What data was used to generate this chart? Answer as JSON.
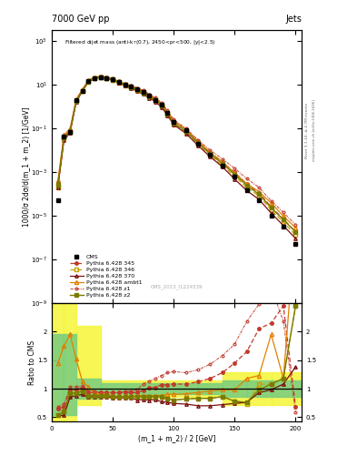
{
  "title_top": "7000 GeV pp",
  "title_right": "Jets",
  "xlabel": "(m_1 + m_2) / 2 [GeV]",
  "ylabel_main": "1000/σ 2dσ/d(m_1 + m_2) [1/GeV]",
  "ylabel_ratio": "Ratio to CMS",
  "watermark": "CMS_2013_I1224539",
  "right_label": "mcplots.cern.ch [arXiv:1306.3436]",
  "right_label2": "Rivet 3.1.10, ≥ 2.7M events",
  "cms_x": [
    5,
    10,
    15,
    20,
    25,
    30,
    35,
    40,
    45,
    50,
    55,
    60,
    65,
    70,
    75,
    80,
    85,
    90,
    95,
    100,
    110,
    120,
    130,
    140,
    150,
    160,
    170,
    180,
    190,
    200
  ],
  "cms_y": [
    5e-05,
    0.04,
    0.07,
    2.0,
    5.0,
    15.0,
    20.0,
    22.0,
    20.0,
    17.0,
    13.0,
    10.0,
    8.0,
    6.0,
    4.5,
    3.0,
    2.0,
    1.2,
    0.5,
    0.2,
    0.08,
    0.02,
    0.006,
    0.002,
    0.0006,
    0.00015,
    5e-05,
    1e-05,
    3e-06,
    5e-07
  ],
  "p345_x": [
    5,
    10,
    15,
    20,
    25,
    30,
    35,
    40,
    45,
    50,
    55,
    60,
    65,
    70,
    75,
    80,
    85,
    90,
    95,
    100,
    110,
    120,
    130,
    140,
    150,
    160,
    170,
    180,
    190,
    200
  ],
  "p345_y": [
    0.0003,
    0.04,
    0.075,
    1.8,
    5.3,
    14.2,
    19.8,
    22.3,
    20.3,
    17.3,
    13.2,
    10.2,
    8.2,
    6.2,
    4.8,
    3.1,
    2.1,
    1.25,
    0.55,
    0.21,
    0.088,
    0.024,
    0.0075,
    0.0028,
    0.00095,
    0.00028,
    0.00011,
    2.5e-05,
    7e-06,
    1.8e-06
  ],
  "p346_x": [
    5,
    10,
    15,
    20,
    25,
    30,
    35,
    40,
    45,
    50,
    55,
    60,
    65,
    70,
    75,
    80,
    85,
    90,
    95,
    100,
    110,
    120,
    130,
    140,
    150,
    160,
    170,
    180,
    190,
    200
  ],
  "p346_y": [
    0.0002,
    0.033,
    0.068,
    1.7,
    5.1,
    13.3,
    19.2,
    21.2,
    19.2,
    16.2,
    12.3,
    9.3,
    7.3,
    5.3,
    4.0,
    2.7,
    1.85,
    1.05,
    0.43,
    0.165,
    0.068,
    0.019,
    0.006,
    0.0019,
    0.00065,
    0.00019,
    8e-05,
    1.8e-05,
    5e-06,
    1.3e-06
  ],
  "p370_x": [
    5,
    10,
    15,
    20,
    25,
    30,
    35,
    40,
    45,
    50,
    55,
    60,
    65,
    70,
    75,
    80,
    85,
    90,
    95,
    100,
    110,
    120,
    130,
    140,
    150,
    160,
    170,
    180,
    190,
    200
  ],
  "p370_y": [
    0.0002,
    0.028,
    0.062,
    1.55,
    4.85,
    12.8,
    18.7,
    20.7,
    18.7,
    15.7,
    11.8,
    8.8,
    6.8,
    4.85,
    3.65,
    2.42,
    1.65,
    0.92,
    0.38,
    0.145,
    0.058,
    0.016,
    0.0049,
    0.0017,
    0.00047,
    0.00014,
    5.5e-05,
    1.3e-05,
    3.5e-06,
    9e-07
  ],
  "pambt1_x": [
    5,
    10,
    15,
    20,
    25,
    30,
    35,
    40,
    45,
    50,
    55,
    60,
    65,
    70,
    75,
    80,
    85,
    90,
    95,
    100,
    110,
    120,
    130,
    140,
    150,
    160,
    170,
    180,
    190,
    200
  ],
  "pambt1_y": [
    0.0004,
    0.048,
    0.095,
    2.1,
    5.9,
    15.8,
    21.7,
    23.7,
    21.7,
    18.3,
    13.8,
    10.8,
    8.6,
    6.6,
    5.1,
    3.35,
    2.26,
    1.36,
    0.56,
    0.215,
    0.088,
    0.025,
    0.0078,
    0.0029,
    0.00088,
    0.00029,
    0.000125,
    3.8e-05,
    9.5e-06,
    2.8e-06
  ],
  "pz1_x": [
    5,
    10,
    15,
    20,
    25,
    30,
    35,
    40,
    45,
    50,
    55,
    60,
    65,
    70,
    75,
    80,
    85,
    90,
    95,
    100,
    110,
    120,
    130,
    140,
    150,
    160,
    170,
    180,
    190,
    200
  ],
  "pz1_y": [
    0.0003,
    0.038,
    0.078,
    1.9,
    5.5,
    14.4,
    20.3,
    22.8,
    20.8,
    17.8,
    13.8,
    10.8,
    8.8,
    6.9,
    5.45,
    3.58,
    2.48,
    1.48,
    0.64,
    0.245,
    0.099,
    0.029,
    0.0098,
    0.0039,
    0.00145,
    0.00049,
    0.000195,
    4.8e-05,
    1.4e-05,
    3.8e-06
  ],
  "pz2_x": [
    5,
    10,
    15,
    20,
    25,
    30,
    35,
    40,
    45,
    50,
    55,
    60,
    65,
    70,
    75,
    80,
    85,
    90,
    95,
    100,
    110,
    120,
    130,
    140,
    150,
    160,
    170,
    180,
    190,
    200
  ],
  "pz2_y": [
    0.00025,
    0.036,
    0.07,
    1.72,
    5.15,
    13.6,
    19.5,
    21.5,
    19.5,
    16.5,
    12.6,
    9.6,
    7.6,
    5.65,
    4.3,
    2.85,
    1.96,
    1.12,
    0.465,
    0.176,
    0.073,
    0.021,
    0.0066,
    0.0024,
    0.00077,
    0.00024,
    9.5e-05,
    2.3e-05,
    6.5e-06,
    1.8e-06
  ],
  "ratio_x": [
    5,
    10,
    15,
    20,
    25,
    30,
    35,
    40,
    45,
    50,
    55,
    60,
    65,
    70,
    75,
    80,
    85,
    90,
    95,
    100,
    110,
    120,
    130,
    140,
    150,
    160,
    170,
    180,
    190,
    200
  ],
  "ratio_345": [
    0.65,
    0.68,
    0.98,
    0.98,
    1.02,
    0.93,
    0.93,
    0.93,
    0.93,
    0.93,
    0.93,
    0.93,
    0.93,
    0.93,
    0.97,
    1.02,
    1.02,
    1.07,
    1.07,
    1.08,
    1.08,
    1.12,
    1.18,
    1.28,
    1.45,
    1.65,
    2.05,
    2.15,
    2.45,
    0.68
  ],
  "ratio_346": [
    0.53,
    0.6,
    0.92,
    0.92,
    0.96,
    0.88,
    0.88,
    0.88,
    0.88,
    0.86,
    0.86,
    0.86,
    0.86,
    0.86,
    0.86,
    0.86,
    0.86,
    0.86,
    0.83,
    0.8,
    0.82,
    0.83,
    0.83,
    0.86,
    0.78,
    0.73,
    1.08,
    1.08,
    1.18,
    2.45
  ],
  "ratio_370": [
    0.53,
    0.53,
    0.85,
    0.88,
    0.9,
    0.85,
    0.86,
    0.85,
    0.85,
    0.84,
    0.84,
    0.84,
    0.84,
    0.8,
    0.81,
    0.8,
    0.81,
    0.77,
    0.76,
    0.74,
    0.73,
    0.7,
    0.7,
    0.72,
    0.74,
    0.76,
    0.93,
    0.98,
    1.08,
    1.38
  ],
  "ratio_ambt1": [
    1.45,
    1.75,
    1.95,
    1.52,
    1.13,
    1.03,
    0.93,
    0.9,
    0.9,
    0.88,
    0.86,
    0.86,
    0.86,
    0.88,
    0.88,
    0.88,
    0.88,
    0.88,
    0.9,
    0.9,
    0.91,
    0.93,
    0.96,
    0.98,
    0.98,
    1.18,
    1.23,
    1.95,
    1.18,
    3.9
  ],
  "ratio_z1": [
    0.68,
    0.73,
    1.03,
    1.03,
    1.05,
    0.96,
    0.96,
    0.93,
    0.93,
    0.93,
    0.93,
    0.95,
    0.96,
    0.98,
    1.08,
    1.13,
    1.18,
    1.23,
    1.28,
    1.3,
    1.28,
    1.33,
    1.43,
    1.58,
    1.78,
    2.18,
    2.48,
    2.78,
    2.18,
    0.58
  ],
  "ratio_z2": [
    0.53,
    0.6,
    0.92,
    0.92,
    0.96,
    0.88,
    0.88,
    0.88,
    0.88,
    0.86,
    0.86,
    0.86,
    0.86,
    0.86,
    0.86,
    0.86,
    0.86,
    0.86,
    0.83,
    0.8,
    0.82,
    0.83,
    0.83,
    0.86,
    0.78,
    0.76,
    0.98,
    1.08,
    1.18,
    2.45
  ],
  "band_x_edges": [
    0,
    10,
    20,
    40,
    60,
    80,
    100,
    120,
    140,
    160,
    180,
    205
  ],
  "band_yellow_lo": [
    0.42,
    0.42,
    0.72,
    0.85,
    0.85,
    0.85,
    0.85,
    0.85,
    0.72,
    0.72,
    0.72,
    0.72
  ],
  "band_yellow_hi": [
    2.5,
    2.5,
    2.1,
    1.15,
    1.15,
    1.15,
    1.15,
    1.15,
    1.28,
    1.28,
    1.28,
    1.28
  ],
  "band_green_lo": [
    0.53,
    0.53,
    0.83,
    0.91,
    0.91,
    0.91,
    0.91,
    0.91,
    0.85,
    0.85,
    0.85,
    0.85
  ],
  "band_green_hi": [
    1.95,
    1.95,
    1.17,
    1.09,
    1.09,
    1.09,
    1.09,
    1.09,
    1.15,
    1.15,
    1.15,
    1.15
  ],
  "color_345": "#c0392b",
  "color_346": "#c8a000",
  "color_370": "#7b1010",
  "color_ambt1": "#e08000",
  "color_z1": "#c0392b",
  "color_z2": "#7b7b00",
  "color_cms": "#000000",
  "xlim": [
    0,
    205
  ],
  "ylim_main": [
    1e-09,
    3000.0
  ],
  "ylim_ratio": [
    0.42,
    2.5
  ],
  "yticks_ratio": [
    0.5,
    1.0,
    1.5,
    2.0
  ],
  "ytick_ratio_labels": [
    "0.5",
    "1",
    "1.5",
    "2"
  ],
  "xticks": [
    0,
    50,
    100,
    150,
    200
  ]
}
